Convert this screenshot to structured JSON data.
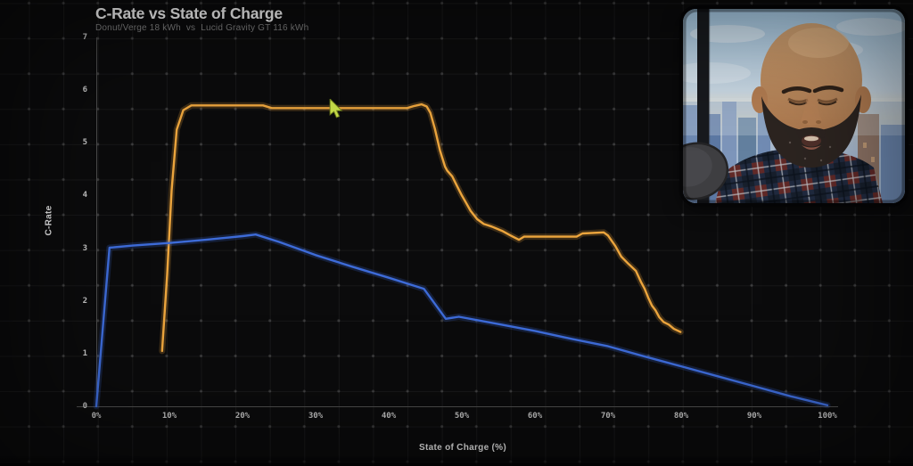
{
  "chart": {
    "title": "C-Rate vs State of Charge",
    "subtitle": "Donut/Verge 18 kWh  vs  Lucid Gravity GT 116 kWh",
    "y_axis_label": "C-Rate",
    "x_axis_label": "State of Charge (%)"
  },
  "chart_data": {
    "type": "line",
    "title": "C-Rate vs State of Charge",
    "subtitle": "Donut/Verge 18 kWh vs Lucid Gravity GT 116 kWh",
    "xlabel": "State of Charge (%)",
    "ylabel": "C-Rate",
    "xlim": [
      0,
      100
    ],
    "ylim": [
      0,
      7
    ],
    "x_ticks": [
      "0%",
      "10%",
      "20%",
      "30%",
      "40%",
      "50%",
      "60%",
      "70%",
      "80%",
      "90%",
      "100%"
    ],
    "x_tick_values": [
      0,
      10,
      20,
      30,
      40,
      50,
      60,
      70,
      80,
      90,
      100
    ],
    "y_ticks": [
      "0",
      "1",
      "2",
      "3",
      "4",
      "5",
      "6",
      "7"
    ],
    "y_tick_values": [
      0,
      1,
      2,
      3,
      4,
      5,
      6,
      7
    ],
    "grid": "faint uniform background grid with dots at intersections, not axis-aligned",
    "legend": "none",
    "series": [
      {
        "id": "donut-verge",
        "name": "Donut/Verge 18 kWh",
        "color": "#eca53d",
        "points": [
          [
            9,
            1.05
          ],
          [
            9.7,
            2.5
          ],
          [
            10.3,
            4.1
          ],
          [
            11,
            5.25
          ],
          [
            11.9,
            5.62
          ],
          [
            13,
            5.71
          ],
          [
            22.8,
            5.71
          ],
          [
            24,
            5.66
          ],
          [
            42.5,
            5.66
          ],
          [
            43.5,
            5.7
          ],
          [
            44.5,
            5.73
          ],
          [
            45.2,
            5.69
          ],
          [
            45.7,
            5.57
          ],
          [
            46.3,
            5.27
          ],
          [
            47,
            4.86
          ],
          [
            47.7,
            4.55
          ],
          [
            48,
            4.47
          ],
          [
            48.7,
            4.36
          ],
          [
            49.3,
            4.19
          ],
          [
            50,
            4.0
          ],
          [
            50.5,
            3.88
          ],
          [
            51.2,
            3.71
          ],
          [
            52.1,
            3.55
          ],
          [
            53,
            3.46
          ],
          [
            54.1,
            3.41
          ],
          [
            55.5,
            3.33
          ],
          [
            56.7,
            3.24
          ],
          [
            57.8,
            3.16
          ],
          [
            58.5,
            3.22
          ],
          [
            65.7,
            3.22
          ],
          [
            66.5,
            3.28
          ],
          [
            69.4,
            3.3
          ],
          [
            70,
            3.24
          ],
          [
            71,
            3.04
          ],
          [
            71.8,
            2.84
          ],
          [
            72.8,
            2.7
          ],
          [
            73.8,
            2.57
          ],
          [
            74.5,
            2.36
          ],
          [
            75,
            2.23
          ],
          [
            75.5,
            2.06
          ],
          [
            76,
            1.91
          ],
          [
            76.5,
            1.82
          ],
          [
            77,
            1.69
          ],
          [
            77.6,
            1.6
          ],
          [
            78.3,
            1.55
          ],
          [
            79,
            1.47
          ],
          [
            79.9,
            1.41
          ]
        ]
      },
      {
        "id": "lucid-gravity",
        "name": "Lucid Gravity GT 116 kWh",
        "color": "#3d6bd8",
        "points": [
          [
            0,
            0
          ],
          [
            1.8,
            3.01
          ],
          [
            5,
            3.05
          ],
          [
            10,
            3.1
          ],
          [
            15,
            3.16
          ],
          [
            20,
            3.23
          ],
          [
            21.8,
            3.26
          ],
          [
            25,
            3.12
          ],
          [
            30,
            2.87
          ],
          [
            35,
            2.65
          ],
          [
            40,
            2.44
          ],
          [
            44.8,
            2.23
          ],
          [
            47.8,
            1.66
          ],
          [
            49.6,
            1.7
          ],
          [
            55,
            1.56
          ],
          [
            60,
            1.43
          ],
          [
            65,
            1.28
          ],
          [
            70,
            1.14
          ],
          [
            74.6,
            0.96
          ],
          [
            80,
            0.76
          ],
          [
            85,
            0.57
          ],
          [
            90,
            0.38
          ],
          [
            95,
            0.19
          ],
          [
            100,
            0.02
          ]
        ]
      }
    ]
  },
  "cursor": {
    "color": "#c9e04a"
  },
  "webcam": {
    "content_note": "presenter webcam: bald bearded man looking down, plaid shirt, microphone lower-left, city skyline through window"
  }
}
